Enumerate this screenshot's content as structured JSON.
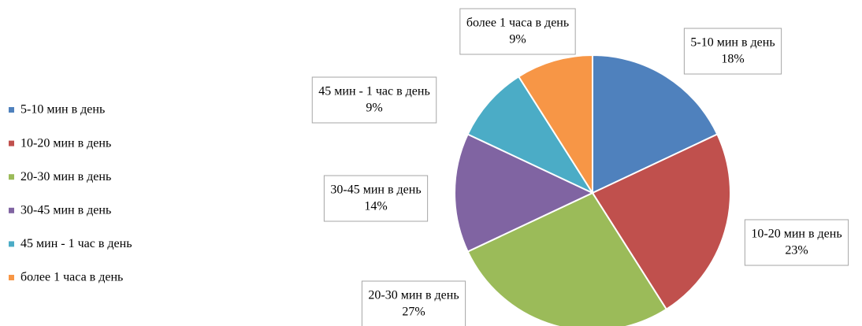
{
  "chart_data": {
    "type": "pie",
    "categories": [
      "5-10 мин в день",
      "10-20 мин в день",
      "20-30 мин в день",
      "30-45 мин в день",
      "45 мин - 1 час в день",
      "более 1 часа в день"
    ],
    "values": [
      18,
      23,
      27,
      14,
      9,
      9
    ],
    "value_labels": [
      "18%",
      "23%",
      "27%",
      "14%",
      "9%",
      "9%"
    ],
    "colors": [
      "#4f81bd",
      "#c0504d",
      "#9bbb59",
      "#8064a2",
      "#4bacc6",
      "#f79646"
    ],
    "legend": "left"
  }
}
